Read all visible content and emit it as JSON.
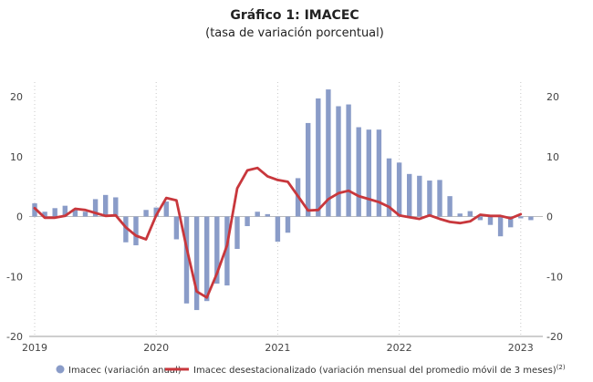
{
  "chart_data": {
    "type": "bar+line",
    "title": "Gráfico 1:  IMACEC",
    "subtitle": "(tasa de variación porcentual)",
    "ylim": [
      -20,
      20
    ],
    "yticks": [
      -20,
      -10,
      0,
      10,
      20
    ],
    "ytick_labels_left": [
      "-20",
      "-10",
      "0",
      "10",
      "20"
    ],
    "ytick_labels_right": [
      "-20",
      "-10",
      "0",
      "10",
      "20"
    ],
    "xtick_labels": [
      "2019",
      "2020",
      "2021",
      "2022",
      "2023"
    ],
    "xtick_positions": [
      0,
      12,
      24,
      36,
      48
    ],
    "series": [
      {
        "name": "Imacec (variación anual)",
        "type": "bar",
        "color": "#8a9cc8",
        "values": [
          2.2,
          0.8,
          1.4,
          1.8,
          1.3,
          0.8,
          2.9,
          3.6,
          3.2,
          -4.3,
          -4.8,
          1.1,
          1.5,
          2.5,
          -3.8,
          -14.5,
          -15.6,
          -14.1,
          -11.2,
          -11.5,
          -5.4,
          -1.6,
          0.8,
          0.4,
          -4.2,
          -2.7,
          6.4,
          15.6,
          19.7,
          21.2,
          18.4,
          18.7,
          14.9,
          14.5,
          14.5,
          9.7,
          9.0,
          7.1,
          6.8,
          6.0,
          6.1,
          3.4,
          0.5,
          0.9,
          -0.6,
          -1.4,
          -3.3,
          -1.8,
          -0.3,
          -0.6
        ],
        "legend_label": "Imacec (variación anual)"
      },
      {
        "name": "Imacec desestacionalizado",
        "type": "line",
        "color": "#c8373c",
        "values": [
          1.4,
          -0.2,
          -0.2,
          0.1,
          1.3,
          1.1,
          0.6,
          0.1,
          0.2,
          -1.8,
          -3.2,
          -3.8,
          0.2,
          3.1,
          2.7,
          -5.2,
          -12.5,
          -13.5,
          -9.5,
          -4.8,
          4.7,
          7.7,
          8.1,
          6.7,
          6.1,
          5.8,
          3.4,
          1.0,
          1.1,
          2.9,
          3.9,
          4.3,
          3.4,
          2.9,
          2.4,
          1.6,
          0.2,
          -0.1,
          -0.4,
          0.2,
          -0.4,
          -0.9,
          -1.1,
          -0.8,
          0.3,
          0.1,
          0.1,
          -0.3,
          0.4
        ],
        "legend_label": "Imacec desestacionalizado (variación mensual del promedio móvil de 3 meses)",
        "legend_superscript": "(2)"
      }
    ]
  }
}
